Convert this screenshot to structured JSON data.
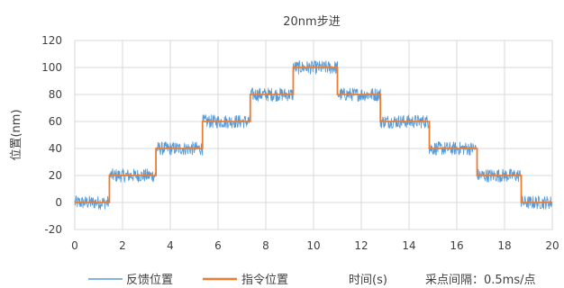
{
  "chart_data": {
    "type": "line",
    "title": "20nm步进",
    "xlabel": "时间(s)",
    "ylabel": "位置(nm)",
    "note": "采点间隔：0.5ms/点",
    "xlim": [
      0,
      20
    ],
    "ylim": [
      -20,
      120
    ],
    "xticks": [
      0,
      2,
      4,
      6,
      8,
      10,
      12,
      14,
      16,
      18,
      20
    ],
    "yticks": [
      -20,
      0,
      20,
      40,
      60,
      80,
      100,
      120
    ],
    "grid": true,
    "legend_position": "bottom-left",
    "series": [
      {
        "name": "反馈位置",
        "color": "#5B9BD5",
        "style": "noisy",
        "noise_amplitude": 5,
        "x": [
          0,
          1.45,
          1.45,
          3.4,
          3.4,
          5.35,
          5.35,
          7.35,
          7.35,
          9.15,
          9.15,
          11.0,
          11.0,
          12.8,
          12.8,
          14.85,
          14.85,
          16.85,
          16.85,
          18.7,
          18.7,
          20
        ],
        "y": [
          0,
          0,
          20,
          20,
          40,
          40,
          60,
          60,
          80,
          80,
          100,
          100,
          80,
          80,
          60,
          60,
          40,
          40,
          20,
          20,
          0,
          0
        ]
      },
      {
        "name": "指令位置",
        "color": "#ED7D31",
        "style": "step",
        "x": [
          0,
          1.45,
          1.45,
          3.4,
          3.4,
          5.35,
          5.35,
          7.35,
          7.35,
          9.15,
          9.15,
          11.0,
          11.0,
          12.8,
          12.8,
          14.85,
          14.85,
          16.85,
          16.85,
          18.7,
          18.7,
          20
        ],
        "y": [
          0,
          0,
          20,
          20,
          40,
          40,
          60,
          60,
          80,
          80,
          100,
          100,
          80,
          80,
          60,
          60,
          40,
          40,
          20,
          20,
          0,
          0
        ]
      }
    ]
  }
}
